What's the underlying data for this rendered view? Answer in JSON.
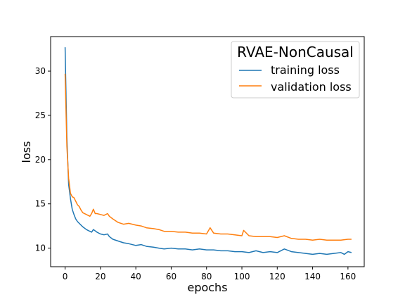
{
  "chart_data": {
    "type": "line",
    "title": "",
    "xlabel": "epochs",
    "ylabel": "loss",
    "xlim": [
      -8.2,
      169.2
    ],
    "ylim": [
      7.9,
      33.9
    ],
    "xticks": [
      0,
      20,
      40,
      60,
      80,
      100,
      120,
      140,
      160
    ],
    "yticks": [
      10,
      15,
      20,
      25,
      30
    ],
    "grid": false,
    "legend": {
      "title": "RVAE-NonCausal",
      "position": "top-right",
      "entries": [
        "training loss",
        "validation loss"
      ]
    },
    "colors": {
      "training loss": "#1f77b4",
      "validation loss": "#ff7f0e"
    },
    "series": [
      {
        "name": "training loss",
        "x": [
          0,
          1,
          2,
          3,
          4,
          5,
          6,
          7,
          8,
          9,
          10,
          12,
          14,
          15,
          16,
          18,
          20,
          22,
          24,
          25,
          27,
          30,
          33,
          36,
          40,
          43,
          46,
          50,
          53,
          56,
          60,
          64,
          68,
          72,
          76,
          80,
          84,
          88,
          92,
          96,
          100,
          104,
          108,
          112,
          116,
          120,
          124,
          128,
          132,
          136,
          140,
          144,
          148,
          152,
          156,
          158,
          160,
          162
        ],
        "y": [
          32.7,
          22.5,
          17.2,
          15.6,
          14.4,
          13.8,
          13.3,
          13.0,
          12.8,
          12.6,
          12.4,
          12.1,
          11.9,
          11.8,
          12.1,
          11.8,
          11.6,
          11.5,
          11.6,
          11.3,
          11.0,
          10.8,
          10.6,
          10.5,
          10.3,
          10.4,
          10.2,
          10.1,
          10.0,
          9.9,
          10.0,
          9.9,
          9.9,
          9.8,
          9.9,
          9.8,
          9.8,
          9.7,
          9.7,
          9.6,
          9.6,
          9.5,
          9.7,
          9.5,
          9.6,
          9.5,
          9.9,
          9.6,
          9.5,
          9.4,
          9.3,
          9.4,
          9.3,
          9.4,
          9.5,
          9.3,
          9.6,
          9.5
        ]
      },
      {
        "name": "validation loss",
        "x": [
          0,
          1,
          2,
          3,
          4,
          5,
          6,
          7,
          8,
          9,
          10,
          12,
          14,
          15,
          16,
          17,
          18,
          20,
          22,
          24,
          25,
          27,
          30,
          33,
          36,
          40,
          43,
          46,
          50,
          53,
          56,
          60,
          64,
          68,
          72,
          76,
          80,
          82,
          84,
          88,
          92,
          96,
          100,
          101,
          104,
          108,
          112,
          116,
          120,
          124,
          128,
          132,
          136,
          140,
          144,
          148,
          152,
          156,
          160,
          162
        ],
        "y": [
          29.7,
          21.5,
          17.9,
          16.2,
          15.8,
          15.7,
          15.3,
          14.9,
          14.7,
          14.3,
          14.0,
          13.8,
          13.6,
          13.9,
          14.4,
          13.9,
          13.9,
          13.8,
          13.7,
          13.9,
          13.6,
          13.3,
          12.9,
          12.7,
          12.8,
          12.6,
          12.5,
          12.3,
          12.2,
          12.1,
          11.9,
          11.9,
          11.8,
          11.8,
          11.7,
          11.7,
          11.6,
          12.3,
          11.7,
          11.6,
          11.6,
          11.5,
          11.4,
          12.0,
          11.4,
          11.3,
          11.3,
          11.3,
          11.2,
          11.4,
          11.1,
          11.0,
          11.0,
          10.9,
          11.0,
          10.9,
          10.9,
          10.9,
          11.0,
          11.0
        ]
      }
    ]
  }
}
